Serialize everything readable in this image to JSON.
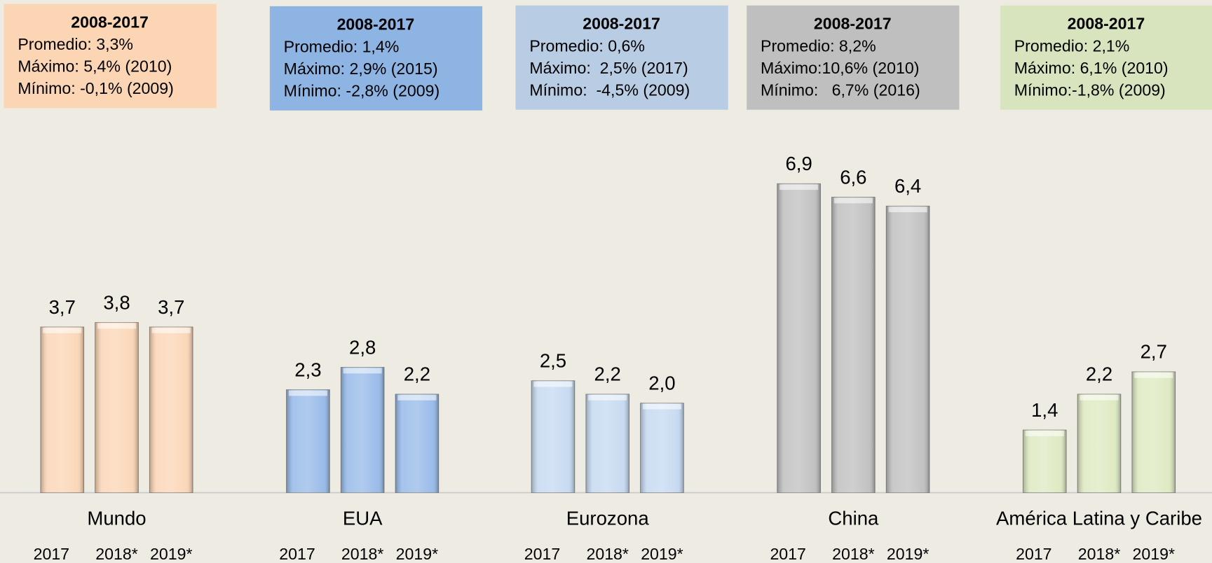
{
  "chart_data": {
    "type": "bar",
    "categories": [
      "Mundo",
      "EUA",
      "Eurozona",
      "China",
      "América Latina y Caribe"
    ],
    "colors": [
      "#fbd5b5",
      "#95b9e8",
      "#c5d9f1",
      "#bfbfbf",
      "#dde9c0"
    ],
    "series": [
      {
        "name": "2017",
        "values": [
          3.7,
          2.3,
          2.5,
          6.9,
          1.4
        ],
        "value_labels": [
          "3,7",
          "2,3",
          "2,5",
          "6,9",
          "1,4"
        ]
      },
      {
        "name": "2018*",
        "values": [
          3.8,
          2.8,
          2.2,
          6.6,
          2.2
        ],
        "value_labels": [
          "3,8",
          "2,8",
          "2,2",
          "6,6",
          "2,2"
        ]
      },
      {
        "name": "2019*",
        "values": [
          3.7,
          2.2,
          2.0,
          6.4,
          2.7
        ],
        "value_labels": [
          "3,7",
          "2,2",
          "2,0",
          "6,4",
          "2,7"
        ]
      }
    ],
    "boxes": [
      {
        "color": "#fcd5b5",
        "title": "2008-2017",
        "lines": [
          "Promedio: 3,3%",
          "Máximo: 5,4% (2010)",
          "Mínimo: -0,1% (2009)"
        ]
      },
      {
        "color": "#8db4e2",
        "title": "2008-2017",
        "lines": [
          "Promedio: 1,4%",
          "Máximo: 2,9% (2015)",
          "Mínimo: -2,8% (2009)"
        ]
      },
      {
        "color": "#b8cce4",
        "title": "2008-2017",
        "lines": [
          "Promedio: 0,6%",
          "Máximo:  2,5% (2017)",
          "Mínimo:  -4,5% (2009)"
        ]
      },
      {
        "color": "#bfbfbf",
        "title": "2008-2017",
        "lines": [
          "Promedio: 8,2%",
          "Máximo:10,6% (2010)",
          "Mínimo:   6,7% (2016)"
        ]
      },
      {
        "color": "#d7e4bd",
        "title": "2008-2017",
        "lines": [
          "Promedio: 2,1%",
          "Máximo: 6,1% (2010)",
          "Mínimo:-1,8% (2009)"
        ]
      }
    ]
  }
}
